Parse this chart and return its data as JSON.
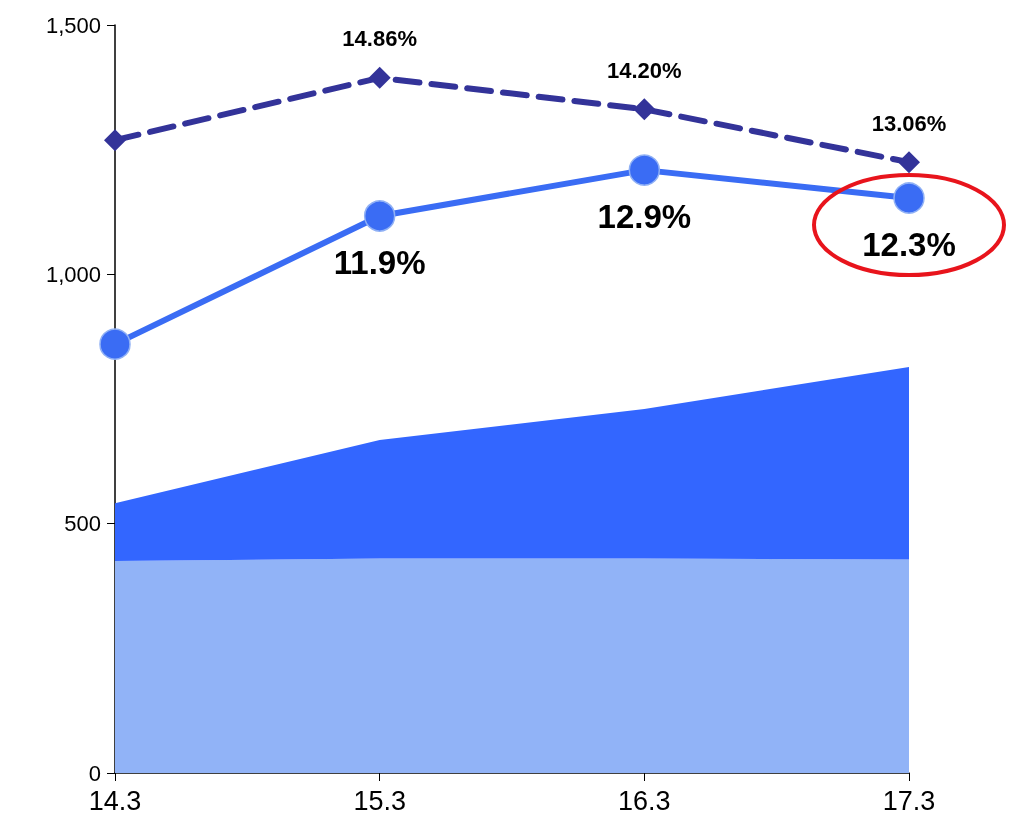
{
  "chart_data": {
    "type": "area",
    "categories": [
      "14.3",
      "15.3",
      "16.3",
      "17.3"
    ],
    "stacked": true,
    "series": [
      {
        "type": "area",
        "color": "#91b3f7",
        "values": [
          425,
          430,
          430,
          428
        ]
      },
      {
        "type": "area",
        "color": "#3366ff",
        "values": [
          116,
          238,
          300,
          386
        ]
      },
      {
        "type": "line",
        "color": "#3a6cf4",
        "marker": "circle",
        "line_style": "solid",
        "values": [
          860,
          1117,
          1209,
          1153
        ]
      },
      {
        "type": "line",
        "color": "#333399",
        "marker": "diamond",
        "line_style": "dashed",
        "values": [
          1269,
          1394,
          1331,
          1225
        ]
      }
    ],
    "annotations": [
      {
        "text": "11.9%",
        "x": "15.3",
        "y": 1117
      },
      {
        "text": "12.9%",
        "x": "16.3",
        "y": 1209
      },
      {
        "text": "12.3%",
        "x": "17.3",
        "y": 1153
      },
      {
        "text": "14.86%",
        "x": "15.3",
        "y": 1394
      },
      {
        "text": "14.20%",
        "x": "16.3",
        "y": 1331
      },
      {
        "text": "13.06%",
        "x": "17.3",
        "y": 1225
      }
    ],
    "ylim": [
      0,
      1500
    ],
    "yticks": [
      0,
      {
        "value": 500,
        "label": "500"
      },
      {
        "value": 1000,
        "label": "1,000"
      },
      {
        "value": 1500,
        "label": "1,500"
      }
    ],
    "grid": false
  }
}
